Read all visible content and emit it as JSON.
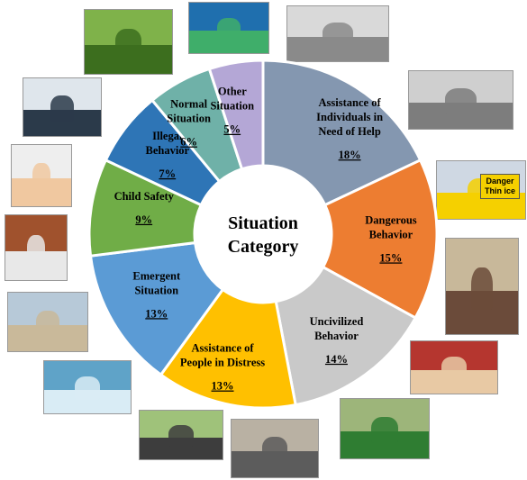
{
  "chart_data": {
    "type": "pie",
    "title": "Situation Category",
    "title_lines": [
      "Situation",
      "Category"
    ],
    "slices": [
      {
        "lines": [
          "Assistance of",
          "Individuals in",
          "Need of Help"
        ],
        "pct_text": "18%",
        "value": 18,
        "color": "#8497b0"
      },
      {
        "lines": [
          "Dangerous",
          "Behavior"
        ],
        "pct_text": "15%",
        "value": 15,
        "color": "#ed7d31"
      },
      {
        "lines": [
          "Uncivilized",
          "Behavior"
        ],
        "pct_text": "14%",
        "value": 14,
        "color": "#c9c9c9"
      },
      {
        "lines": [
          "Assistance of",
          "People in Distress"
        ],
        "pct_text": "13%",
        "value": 13,
        "color": "#ffc000"
      },
      {
        "lines": [
          "Emergent",
          "Situation"
        ],
        "pct_text": "13%",
        "value": 13,
        "color": "#5b9bd5"
      },
      {
        "lines": [
          "Child Safety"
        ],
        "pct_text": "9%",
        "value": 9,
        "color": "#70ad47"
      },
      {
        "lines": [
          "Illegal",
          "Behavior"
        ],
        "pct_text": "7%",
        "value": 7,
        "color": "#2e75b6"
      },
      {
        "lines": [
          "Normal",
          "Situation"
        ],
        "pct_text": "6%",
        "value": 6,
        "color": "#6fb1a8"
      },
      {
        "lines": [
          "Other",
          "Situation"
        ],
        "pct_text": "5%",
        "value": 5,
        "color": "#b4a7d6"
      }
    ]
  },
  "photos": [
    {
      "name": "photo-cyclist-resting-on-grass",
      "sky": "#7fb24a",
      "fg": "#3c6e1e"
    },
    {
      "name": "photo-sea-turtle-in-net",
      "sky": "#1f6fae",
      "fg": "#3fae6a"
    },
    {
      "name": "photo-pedestrian-crossing-street",
      "sky": "#d9d9d9",
      "fg": "#8a8a8a"
    },
    {
      "name": "photo-wheelchair-user-at-stairs",
      "sky": "#cfcfcf",
      "fg": "#7d7d7d"
    },
    {
      "name": "photo-danger-thin-ice-sign",
      "sky": "#cfd8e3",
      "fg": "#f5d000",
      "caption": [
        "Danger",
        "Thin ice"
      ]
    },
    {
      "name": "photo-person-climbing-balcony",
      "sky": "#c8b89a",
      "fg": "#6b4b3a"
    },
    {
      "name": "photo-audience-in-theater",
      "sky": "#b5362f",
      "fg": "#e8c9a4"
    },
    {
      "name": "photo-bottle-thrown-from-car",
      "sky": "#9db57a",
      "fg": "#2f7d32"
    },
    {
      "name": "photo-injured-person-roadside",
      "sky": "#b9b1a3",
      "fg": "#5c5c5c"
    },
    {
      "name": "photo-runner-sitting-injured",
      "sky": "#9fc27a",
      "fg": "#3d3d3d"
    },
    {
      "name": "photo-person-drowning",
      "sky": "#5fa3c8",
      "fg": "#d9ecf5"
    },
    {
      "name": "photo-overturned-car",
      "sky": "#b7c9d8",
      "fg": "#c9b99a"
    },
    {
      "name": "photo-child-in-washing-machine",
      "sky": "#a0522d",
      "fg": "#e8e8e8"
    },
    {
      "name": "photo-child-touching-fan",
      "sky": "#eeeeee",
      "fg": "#f0c8a0"
    },
    {
      "name": "photo-shoplifting-in-store",
      "sky": "#dfe6ec",
      "fg": "#2b3a4a"
    }
  ]
}
